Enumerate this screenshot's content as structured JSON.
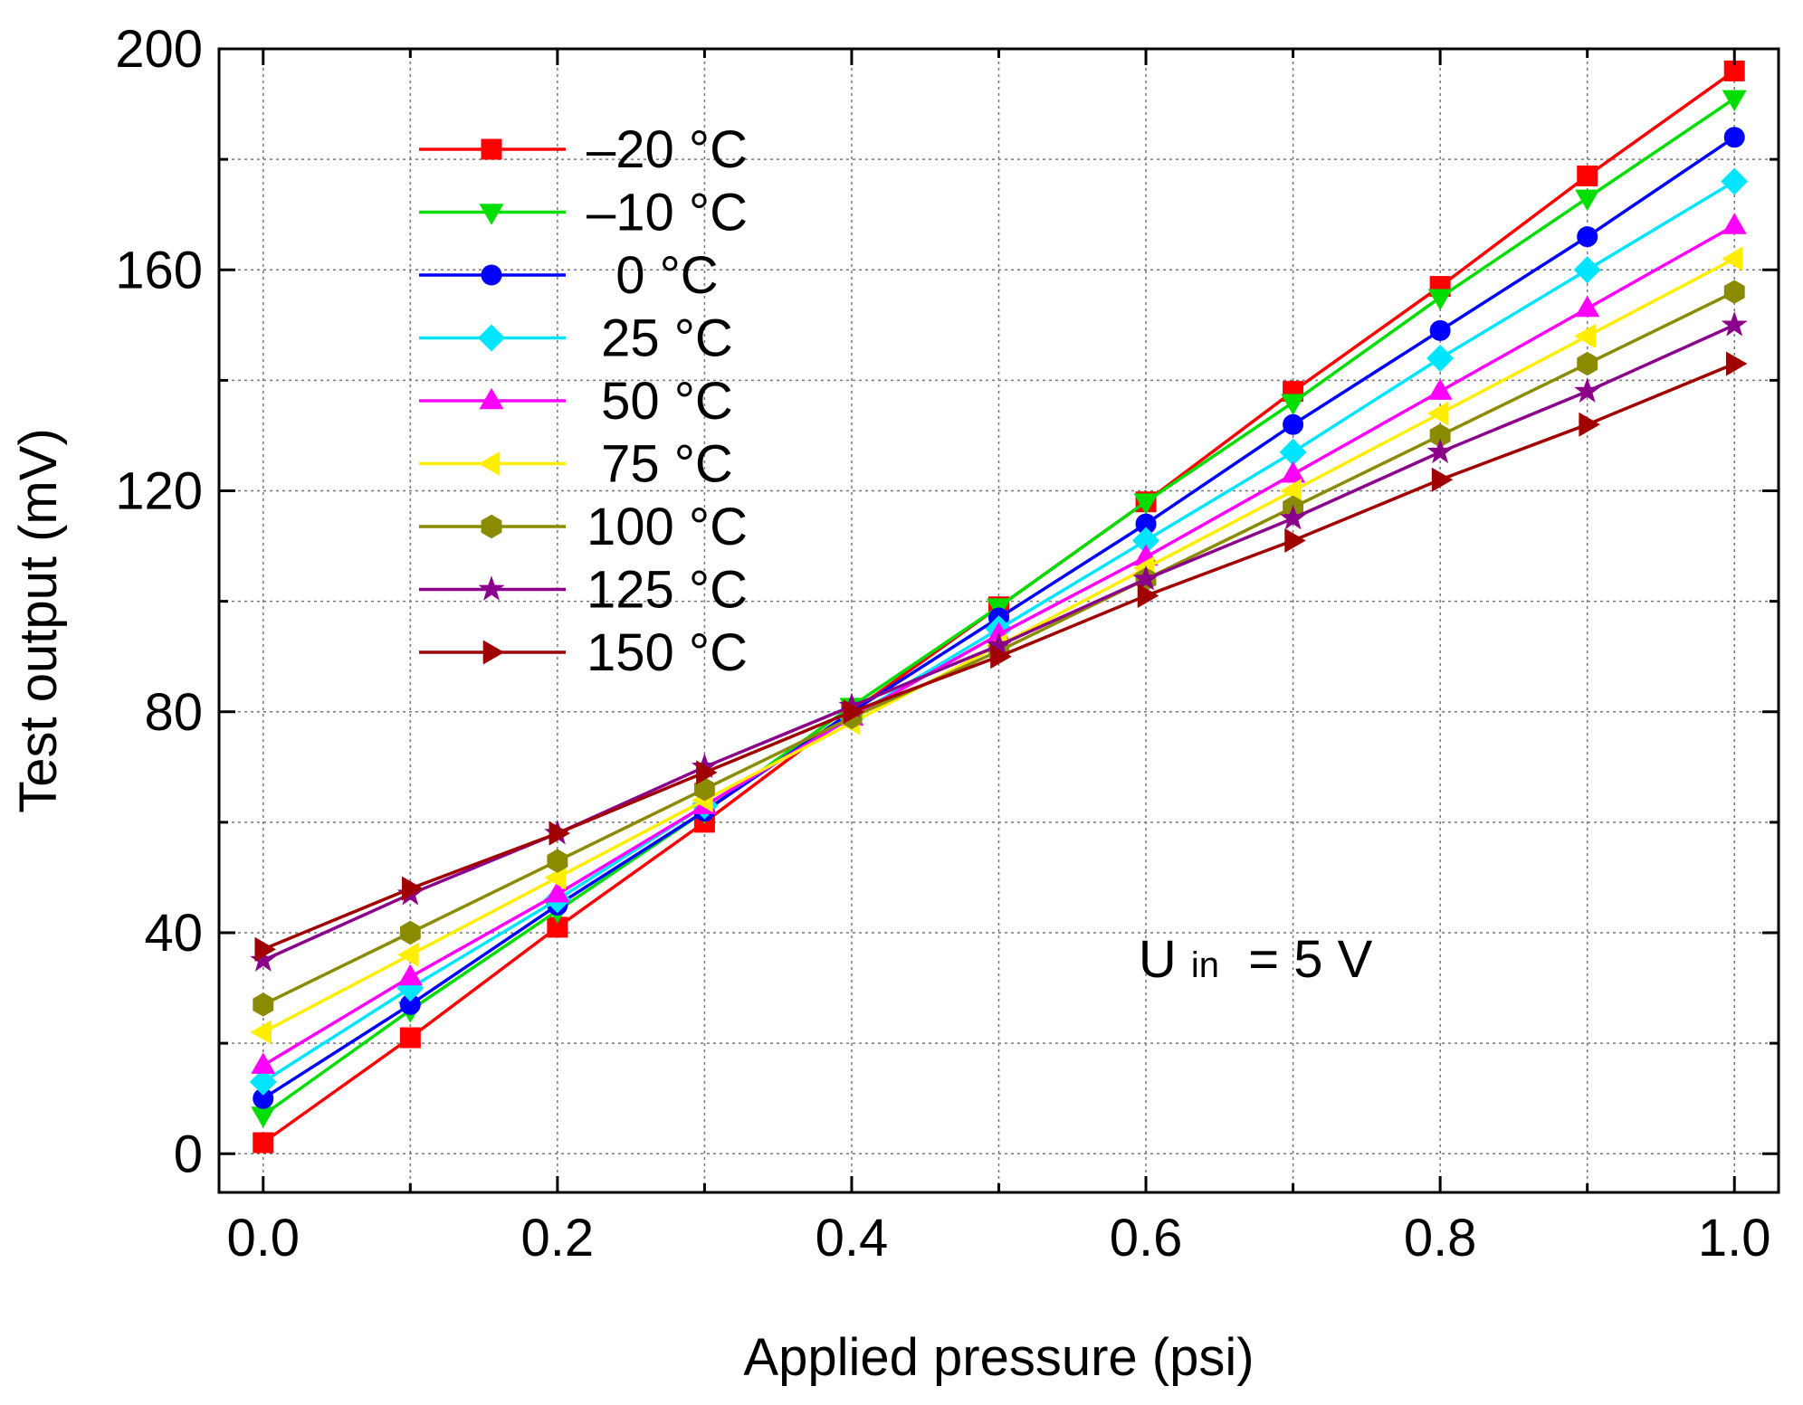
{
  "chart_data": {
    "type": "line",
    "title": "",
    "xlabel": "Applied pressure (psi)",
    "ylabel": "Test output (mV)",
    "xlim": [
      -0.03,
      1.03
    ],
    "ylim": [
      -7,
      200
    ],
    "xticks": [
      0.0,
      0.2,
      0.4,
      0.6,
      0.8,
      1.0
    ],
    "xtick_labels": [
      "0.0",
      "0.2",
      "0.4",
      "0.6",
      "0.8",
      "1.0"
    ],
    "yticks": [
      0,
      40,
      80,
      120,
      160,
      200
    ],
    "ytick_labels": [
      "0",
      "40",
      "80",
      "120",
      "160",
      "200"
    ],
    "grid": true,
    "legend_position": "top-left",
    "annotation": {
      "main": "U",
      "sub": "in",
      "rest": " = 5 V"
    },
    "x": [
      0.0,
      0.1,
      0.2,
      0.3,
      0.4,
      0.5,
      0.6,
      0.7,
      0.8,
      0.9,
      1.0
    ],
    "series": [
      {
        "name": "–20 °C",
        "color": "#ff0000",
        "marker": "square",
        "values": [
          2,
          21,
          41,
          60,
          80,
          99,
          118,
          138,
          157,
          177,
          196
        ]
      },
      {
        "name": "–10 °C",
        "color": "#00dd00",
        "marker": "triangle-down",
        "values": [
          7,
          26,
          44,
          62,
          81,
          99,
          118,
          136,
          155,
          173,
          191
        ]
      },
      {
        "name": "  0 °C",
        "color": "#0000ff",
        "marker": "circle",
        "values": [
          10,
          27,
          45,
          62,
          80,
          97,
          114,
          132,
          149,
          166,
          184
        ]
      },
      {
        "name": " 25 °C",
        "color": "#00e5ff",
        "marker": "diamond",
        "values": [
          13,
          30,
          46,
          63,
          79,
          95,
          111,
          127,
          144,
          160,
          176
        ]
      },
      {
        "name": " 50 °C",
        "color": "#ff00ff",
        "marker": "triangle-up",
        "values": [
          16,
          32,
          47,
          63,
          79,
          94,
          108,
          123,
          138,
          153,
          168
        ]
      },
      {
        "name": " 75 °C",
        "color": "#ffee00",
        "marker": "triangle-left",
        "values": [
          22,
          36,
          50,
          64,
          78,
          92,
          106,
          120,
          134,
          148,
          162
        ]
      },
      {
        "name": "100 °C",
        "color": "#8b8b00",
        "marker": "hexagon",
        "values": [
          27,
          40,
          53,
          66,
          79,
          91,
          104,
          117,
          130,
          143,
          156
        ]
      },
      {
        "name": "125 °C",
        "color": "#8b008b",
        "marker": "star",
        "values": [
          35,
          47,
          58,
          70,
          81,
          92,
          104,
          115,
          127,
          138,
          150
        ]
      },
      {
        "name": "150 °C",
        "color": "#a00000",
        "marker": "triangle-right",
        "values": [
          37,
          48,
          58,
          69,
          80,
          90,
          101,
          111,
          122,
          132,
          143
        ]
      }
    ]
  }
}
